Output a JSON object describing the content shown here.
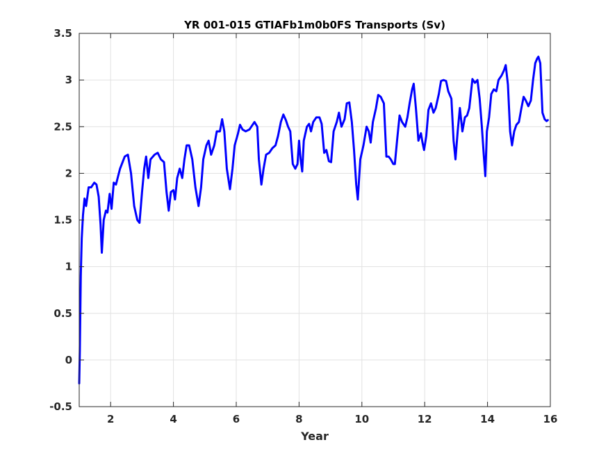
{
  "chart_data": {
    "type": "line",
    "title": "YR 001-015 GTIAFb1m0b0FS Transports (Sv)",
    "xlabel": "Year",
    "ylabel": "",
    "xlim": [
      1,
      16
    ],
    "ylim": [
      -0.5,
      3.5
    ],
    "xticks": [
      2,
      4,
      6,
      8,
      10,
      12,
      14,
      16
    ],
    "yticks": [
      -0.5,
      0,
      0.5,
      1,
      1.5,
      2,
      2.5,
      3,
      3.5
    ],
    "xtick_labels": [
      "2",
      "4",
      "6",
      "8",
      "10",
      "12",
      "14",
      "16"
    ],
    "ytick_labels": [
      "-0.5",
      "0",
      "0.5",
      "1",
      "1.5",
      "2",
      "2.5",
      "3",
      "3.5"
    ],
    "grid": true,
    "series": [
      {
        "color": "#0000ff",
        "points": [
          [
            1.0,
            -0.25
          ],
          [
            1.02,
            0.1
          ],
          [
            1.05,
            0.9
          ],
          [
            1.08,
            1.3
          ],
          [
            1.12,
            1.55
          ],
          [
            1.17,
            1.73
          ],
          [
            1.22,
            1.65
          ],
          [
            1.3,
            1.85
          ],
          [
            1.38,
            1.85
          ],
          [
            1.48,
            1.9
          ],
          [
            1.55,
            1.88
          ],
          [
            1.62,
            1.75
          ],
          [
            1.68,
            1.45
          ],
          [
            1.72,
            1.15
          ],
          [
            1.78,
            1.5
          ],
          [
            1.85,
            1.6
          ],
          [
            1.9,
            1.58
          ],
          [
            1.97,
            1.78
          ],
          [
            2.03,
            1.62
          ],
          [
            2.1,
            1.9
          ],
          [
            2.17,
            1.88
          ],
          [
            2.3,
            2.05
          ],
          [
            2.45,
            2.18
          ],
          [
            2.55,
            2.2
          ],
          [
            2.65,
            2.0
          ],
          [
            2.75,
            1.65
          ],
          [
            2.85,
            1.5
          ],
          [
            2.92,
            1.47
          ],
          [
            3.0,
            1.8
          ],
          [
            3.07,
            2.05
          ],
          [
            3.13,
            2.18
          ],
          [
            3.2,
            1.95
          ],
          [
            3.27,
            2.15
          ],
          [
            3.4,
            2.2
          ],
          [
            3.5,
            2.22
          ],
          [
            3.6,
            2.15
          ],
          [
            3.7,
            2.12
          ],
          [
            3.78,
            1.8
          ],
          [
            3.85,
            1.6
          ],
          [
            3.92,
            1.8
          ],
          [
            4.0,
            1.82
          ],
          [
            4.05,
            1.72
          ],
          [
            4.12,
            1.95
          ],
          [
            4.2,
            2.05
          ],
          [
            4.28,
            1.95
          ],
          [
            4.35,
            2.15
          ],
          [
            4.42,
            2.3
          ],
          [
            4.5,
            2.3
          ],
          [
            4.6,
            2.15
          ],
          [
            4.7,
            1.85
          ],
          [
            4.8,
            1.65
          ],
          [
            4.88,
            1.85
          ],
          [
            4.95,
            2.15
          ],
          [
            5.05,
            2.3
          ],
          [
            5.12,
            2.35
          ],
          [
            5.2,
            2.2
          ],
          [
            5.3,
            2.3
          ],
          [
            5.38,
            2.45
          ],
          [
            5.48,
            2.45
          ],
          [
            5.55,
            2.58
          ],
          [
            5.62,
            2.45
          ],
          [
            5.7,
            2.05
          ],
          [
            5.8,
            1.83
          ],
          [
            5.88,
            2.05
          ],
          [
            5.95,
            2.3
          ],
          [
            6.05,
            2.42
          ],
          [
            6.12,
            2.52
          ],
          [
            6.2,
            2.47
          ],
          [
            6.3,
            2.45
          ],
          [
            6.42,
            2.47
          ],
          [
            6.52,
            2.52
          ],
          [
            6.58,
            2.55
          ],
          [
            6.67,
            2.5
          ],
          [
            6.72,
            2.15
          ],
          [
            6.8,
            1.88
          ],
          [
            6.87,
            2.05
          ],
          [
            6.95,
            2.2
          ],
          [
            7.05,
            2.22
          ],
          [
            7.15,
            2.27
          ],
          [
            7.25,
            2.3
          ],
          [
            7.33,
            2.4
          ],
          [
            7.42,
            2.55
          ],
          [
            7.5,
            2.63
          ],
          [
            7.58,
            2.57
          ],
          [
            7.65,
            2.5
          ],
          [
            7.72,
            2.45
          ],
          [
            7.8,
            2.1
          ],
          [
            7.88,
            2.05
          ],
          [
            7.95,
            2.1
          ],
          [
            8.0,
            2.35
          ],
          [
            8.05,
            2.15
          ],
          [
            8.1,
            2.02
          ],
          [
            8.15,
            2.35
          ],
          [
            8.25,
            2.5
          ],
          [
            8.32,
            2.53
          ],
          [
            8.38,
            2.45
          ],
          [
            8.45,
            2.55
          ],
          [
            8.55,
            2.6
          ],
          [
            8.65,
            2.6
          ],
          [
            8.72,
            2.53
          ],
          [
            8.8,
            2.22
          ],
          [
            8.87,
            2.25
          ],
          [
            8.95,
            2.13
          ],
          [
            9.02,
            2.12
          ],
          [
            9.1,
            2.45
          ],
          [
            9.2,
            2.55
          ],
          [
            9.27,
            2.65
          ],
          [
            9.35,
            2.5
          ],
          [
            9.45,
            2.58
          ],
          [
            9.52,
            2.75
          ],
          [
            9.6,
            2.76
          ],
          [
            9.68,
            2.55
          ],
          [
            9.75,
            2.25
          ],
          [
            9.82,
            1.88
          ],
          [
            9.87,
            1.72
          ],
          [
            9.95,
            2.15
          ],
          [
            10.05,
            2.3
          ],
          [
            10.15,
            2.5
          ],
          [
            10.22,
            2.45
          ],
          [
            10.28,
            2.33
          ],
          [
            10.35,
            2.55
          ],
          [
            10.45,
            2.7
          ],
          [
            10.52,
            2.84
          ],
          [
            10.6,
            2.82
          ],
          [
            10.7,
            2.75
          ],
          [
            10.78,
            2.18
          ],
          [
            10.85,
            2.18
          ],
          [
            10.92,
            2.15
          ],
          [
            11.0,
            2.1
          ],
          [
            11.05,
            2.1
          ],
          [
            11.12,
            2.35
          ],
          [
            11.2,
            2.62
          ],
          [
            11.28,
            2.55
          ],
          [
            11.38,
            2.5
          ],
          [
            11.45,
            2.6
          ],
          [
            11.52,
            2.75
          ],
          [
            11.6,
            2.9
          ],
          [
            11.65,
            2.96
          ],
          [
            11.72,
            2.7
          ],
          [
            11.8,
            2.35
          ],
          [
            11.88,
            2.43
          ],
          [
            11.93,
            2.33
          ],
          [
            11.98,
            2.25
          ],
          [
            12.05,
            2.4
          ],
          [
            12.12,
            2.68
          ],
          [
            12.2,
            2.75
          ],
          [
            12.28,
            2.65
          ],
          [
            12.35,
            2.7
          ],
          [
            12.45,
            2.85
          ],
          [
            12.52,
            2.99
          ],
          [
            12.6,
            3.0
          ],
          [
            12.68,
            2.99
          ],
          [
            12.75,
            2.88
          ],
          [
            12.85,
            2.8
          ],
          [
            12.92,
            2.35
          ],
          [
            12.98,
            2.15
          ],
          [
            13.05,
            2.45
          ],
          [
            13.12,
            2.7
          ],
          [
            13.2,
            2.45
          ],
          [
            13.28,
            2.6
          ],
          [
            13.35,
            2.62
          ],
          [
            13.42,
            2.7
          ],
          [
            13.52,
            3.01
          ],
          [
            13.6,
            2.97
          ],
          [
            13.68,
            3.0
          ],
          [
            13.75,
            2.8
          ],
          [
            13.82,
            2.5
          ],
          [
            13.88,
            2.2
          ],
          [
            13.93,
            1.97
          ],
          [
            13.98,
            2.45
          ],
          [
            14.05,
            2.6
          ],
          [
            14.12,
            2.85
          ],
          [
            14.2,
            2.9
          ],
          [
            14.28,
            2.88
          ],
          [
            14.35,
            3.0
          ],
          [
            14.45,
            3.05
          ],
          [
            14.52,
            3.1
          ],
          [
            14.58,
            3.16
          ],
          [
            14.65,
            2.95
          ],
          [
            14.72,
            2.45
          ],
          [
            14.78,
            2.3
          ],
          [
            14.85,
            2.45
          ],
          [
            14.92,
            2.52
          ],
          [
            15.0,
            2.55
          ],
          [
            15.08,
            2.7
          ],
          [
            15.15,
            2.82
          ],
          [
            15.22,
            2.78
          ],
          [
            15.3,
            2.72
          ],
          [
            15.38,
            2.78
          ],
          [
            15.45,
            3.0
          ],
          [
            15.52,
            3.18
          ],
          [
            15.58,
            3.23
          ],
          [
            15.62,
            3.25
          ],
          [
            15.68,
            3.18
          ],
          [
            15.75,
            2.65
          ],
          [
            15.82,
            2.58
          ],
          [
            15.88,
            2.56
          ],
          [
            15.92,
            2.57
          ]
        ]
      }
    ]
  }
}
